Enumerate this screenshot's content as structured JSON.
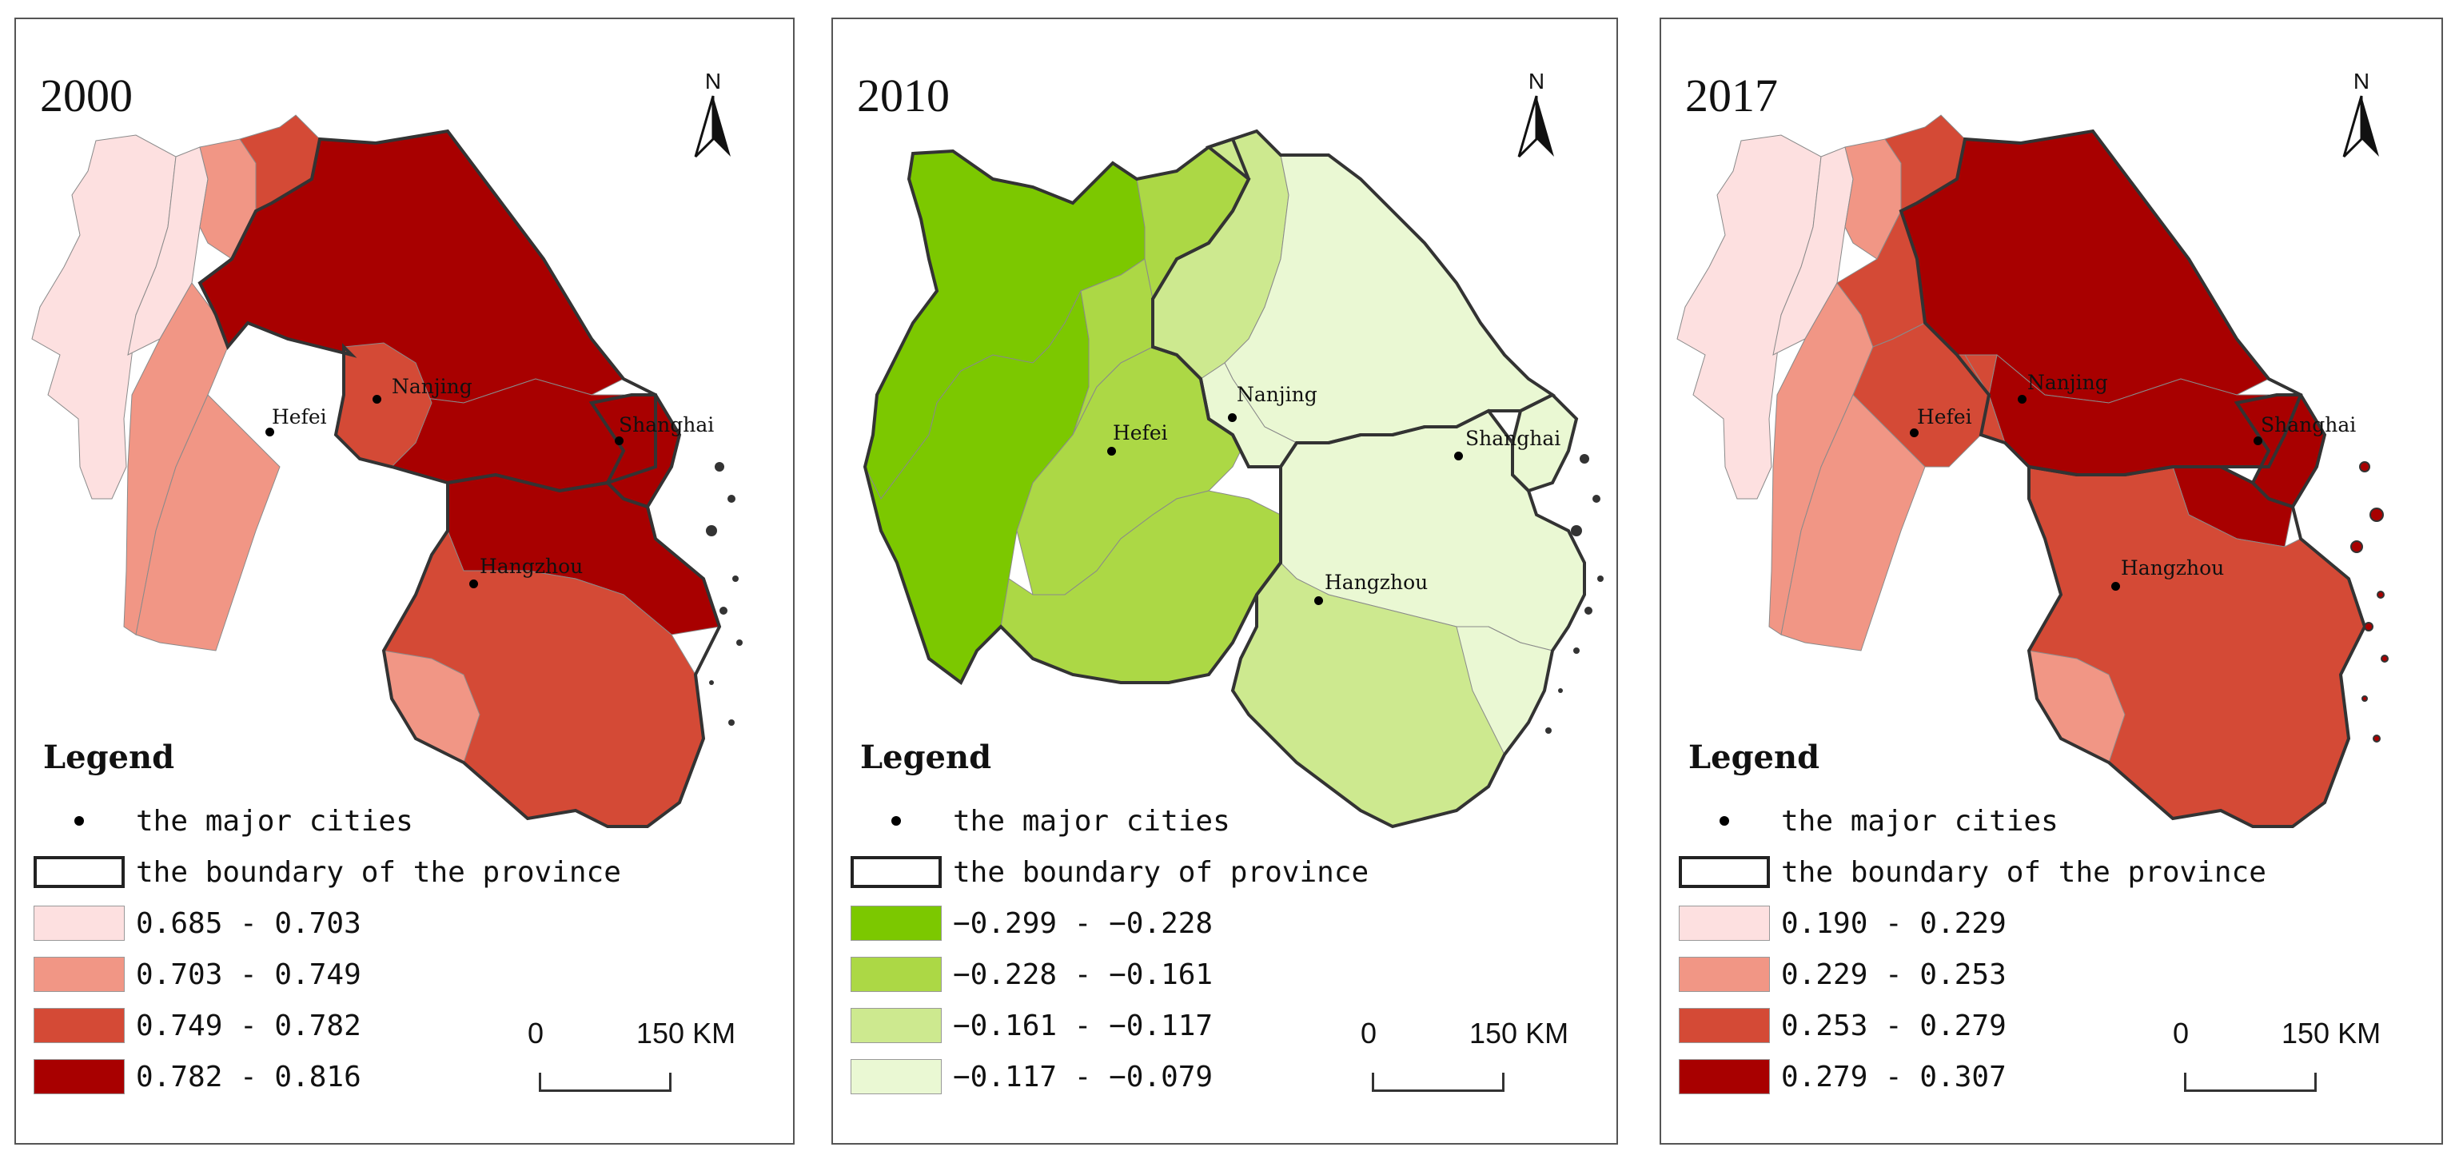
{
  "panels": [
    {
      "year": "2000",
      "north_label": "N",
      "cities": [
        {
          "name": "Nanjing"
        },
        {
          "name": "Hefei"
        },
        {
          "name": "Shanghai"
        },
        {
          "name": "Hangzhou"
        }
      ],
      "legend": {
        "title": "Legend",
        "major_cities": "the major cities",
        "boundary": "the boundary of the province",
        "classes": [
          {
            "label": "0.685 - 0.703",
            "color": "#fde0e0"
          },
          {
            "label": "0.703 - 0.749",
            "color": "#f19685"
          },
          {
            "label": "0.749 - 0.782",
            "color": "#d44a36"
          },
          {
            "label": "0.782 - 0.816",
            "color": "#a80000"
          }
        ]
      },
      "scale": {
        "start": "0",
        "end": "150 KM"
      }
    },
    {
      "year": "2010",
      "north_label": "N",
      "cities": [
        {
          "name": "Nanjing"
        },
        {
          "name": "Hefei"
        },
        {
          "name": "Shanghai"
        },
        {
          "name": "Hangzhou"
        }
      ],
      "legend": {
        "title": "Legend",
        "major_cities": "the major cities",
        "boundary": "the boundary of province",
        "classes": [
          {
            "label": "−0.299 - −0.228",
            "color": "#7cc800"
          },
          {
            "label": "−0.228 - −0.161",
            "color": "#acd845"
          },
          {
            "label": "−0.161 - −0.117",
            "color": "#cde98f"
          },
          {
            "label": "−0.117 - −0.079",
            "color": "#eaf8d3"
          }
        ]
      },
      "scale": {
        "start": "0",
        "end": "150 KM"
      }
    },
    {
      "year": "2017",
      "north_label": "N",
      "cities": [
        {
          "name": "Nanjing"
        },
        {
          "name": "Hefei"
        },
        {
          "name": "Shanghai"
        },
        {
          "name": "Hangzhou"
        }
      ],
      "legend": {
        "title": "Legend",
        "major_cities": "the major cities",
        "boundary": "the boundary of the province",
        "classes": [
          {
            "label": "0.190 - 0.229",
            "color": "#fde0e0"
          },
          {
            "label": "0.229 - 0.253",
            "color": "#f19685"
          },
          {
            "label": "0.253 - 0.279",
            "color": "#d44a36"
          },
          {
            "label": "0.279 - 0.307",
            "color": "#a80000"
          }
        ]
      },
      "scale": {
        "start": "0",
        "end": "150 KM"
      }
    }
  ]
}
